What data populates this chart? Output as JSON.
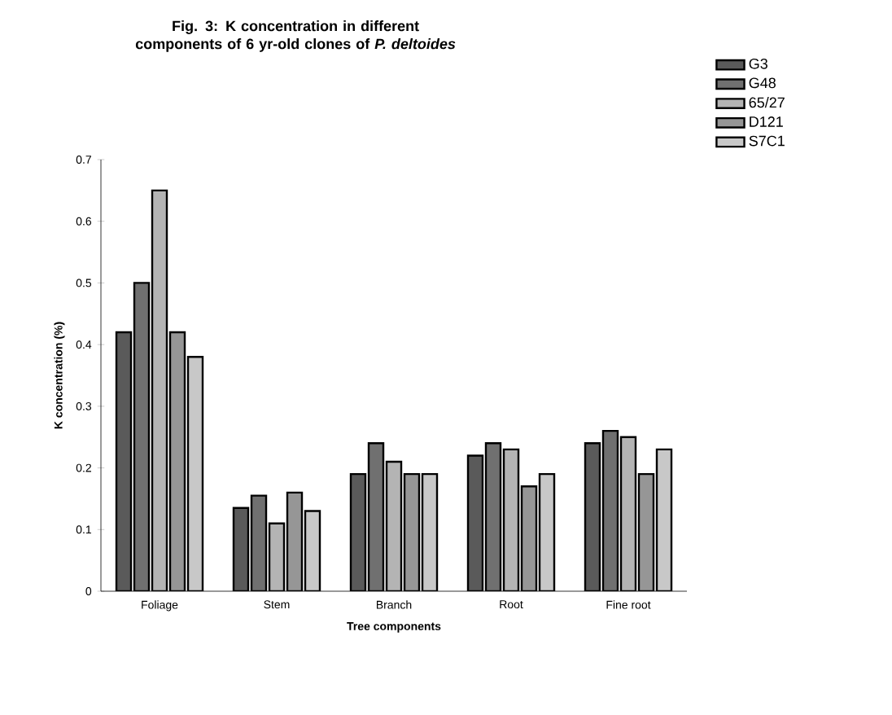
{
  "chart_data": {
    "type": "bar",
    "title": "Fig. 3: K concentration in different components of 6 yr-old clones of *P. deltoides*",
    "xlabel": "Tree components",
    "ylabel": "K concentration (%)",
    "categories": [
      "Foliage",
      "Stem",
      "Branch",
      "Root",
      "Fine root"
    ],
    "series": [
      {
        "name": "G3",
        "color": "#5a5a5a",
        "values": [
          0.42,
          0.135,
          0.19,
          0.22,
          0.24
        ]
      },
      {
        "name": "G48",
        "color": "#707070",
        "values": [
          0.5,
          0.155,
          0.24,
          0.24,
          0.26
        ]
      },
      {
        "name": "65/27",
        "color": "#b4b4b4",
        "values": [
          0.65,
          0.11,
          0.21,
          0.23,
          0.25
        ]
      },
      {
        "name": "D121",
        "color": "#969696",
        "values": [
          0.42,
          0.16,
          0.19,
          0.17,
          0.19
        ]
      },
      {
        "name": "S7C1",
        "color": "#c8c8c8",
        "values": [
          0.38,
          0.13,
          0.19,
          0.19,
          0.23
        ]
      }
    ],
    "ylim": [
      0,
      0.7
    ],
    "yticks": [
      0,
      0.1,
      0.2,
      0.3,
      0.4,
      0.5,
      0.6,
      0.7
    ],
    "grid": false,
    "legend": "top right"
  }
}
